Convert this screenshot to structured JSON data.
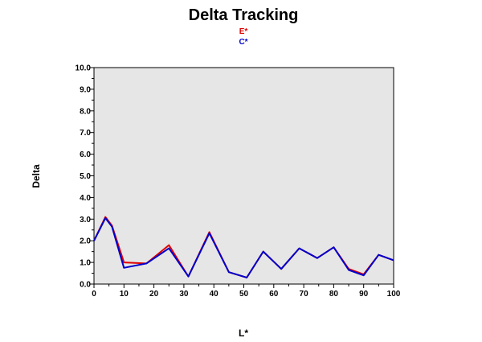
{
  "chart_data": {
    "type": "line",
    "title": "Delta Tracking",
    "xlabel": "L*",
    "ylabel": "Delta",
    "xlim": [
      0,
      100
    ],
    "ylim": [
      0,
      10
    ],
    "x_ticks": [
      "0",
      "10",
      "20",
      "30",
      "40",
      "50",
      "60",
      "70",
      "80",
      "90",
      "100"
    ],
    "y_ticks": [
      "0.0",
      "1.0",
      "2.0",
      "3.0",
      "4.0",
      "5.0",
      "6.0",
      "7.0",
      "8.0",
      "9.0",
      "10.0"
    ],
    "grid": false,
    "legend_placement": "top-center",
    "colors": {
      "plot_background": "#e6e6e6",
      "series_e": "#e00000",
      "series_c": "#0000cc"
    },
    "series": [
      {
        "name": "E*",
        "color": "#e00000",
        "x": [
          0,
          3.8,
          6,
          10,
          17.5,
          25,
          31.5,
          38.5,
          45,
          51,
          56.5,
          62.5,
          68.5,
          74.5,
          80,
          85,
          90,
          95,
          100
        ],
        "y": [
          2.0,
          3.1,
          2.7,
          1.0,
          0.95,
          1.8,
          0.35,
          2.4,
          0.55,
          0.3,
          1.5,
          0.7,
          1.65,
          1.2,
          1.7,
          0.7,
          0.45,
          1.35,
          1.1
        ]
      },
      {
        "name": "C*",
        "color": "#0000cc",
        "x": [
          0,
          3.8,
          6,
          10,
          17.5,
          25,
          31.5,
          38.5,
          45,
          51,
          56.5,
          62.5,
          68.5,
          74.5,
          80,
          85,
          90,
          95,
          100
        ],
        "y": [
          2.0,
          3.05,
          2.65,
          0.75,
          0.95,
          1.65,
          0.35,
          2.35,
          0.55,
          0.3,
          1.5,
          0.7,
          1.65,
          1.2,
          1.7,
          0.65,
          0.4,
          1.35,
          1.1
        ]
      }
    ]
  }
}
